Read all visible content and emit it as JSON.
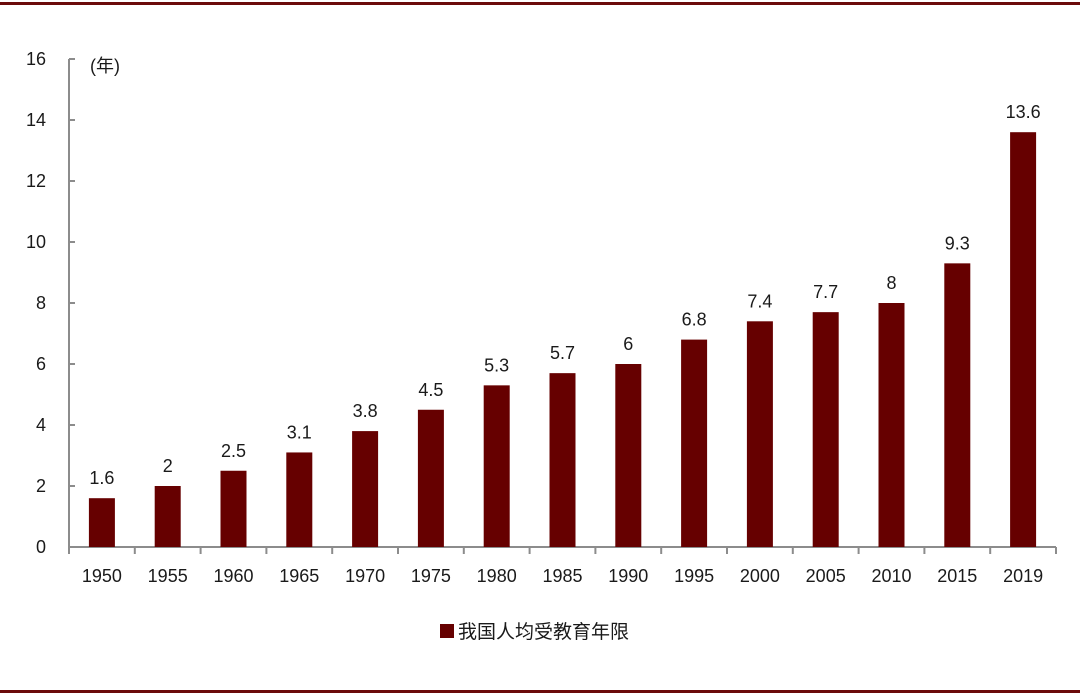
{
  "chart_data": {
    "type": "bar",
    "title": "",
    "xlabel": "",
    "ylabel": "(年)",
    "ylim": [
      0,
      16
    ],
    "yticks": [
      0,
      2,
      4,
      6,
      8,
      10,
      12,
      14,
      16
    ],
    "grid": false,
    "legend_position": "bottom",
    "categories": [
      "1950",
      "1955",
      "1960",
      "1965",
      "1970",
      "1975",
      "1980",
      "1985",
      "1990",
      "1995",
      "2000",
      "2005",
      "2010",
      "2015",
      "2019"
    ],
    "series": [
      {
        "name": "我国人均受教育年限",
        "color": "#660000",
        "values": [
          1.6,
          2,
          2.5,
          3.1,
          3.8,
          4.5,
          5.3,
          5.7,
          6,
          6.8,
          7.4,
          7.7,
          8,
          9.3,
          13.6
        ],
        "labels": [
          "1.6",
          "2",
          "2.5",
          "3.1",
          "3.8",
          "4.5",
          "5.3",
          "5.7",
          "6",
          "6.8",
          "7.4",
          "7.7",
          "8",
          "9.3",
          "13.6"
        ]
      }
    ]
  },
  "legend": {
    "label": "我国人均受教育年限",
    "color": "#660000"
  },
  "axis": {
    "unit_label": "(年)"
  }
}
